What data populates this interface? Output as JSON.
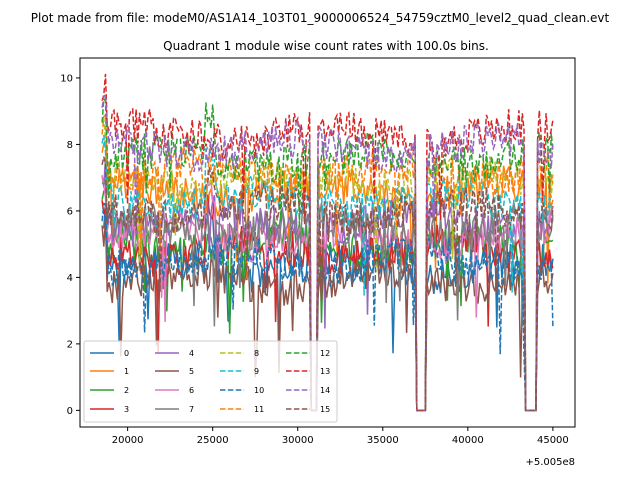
{
  "chart_data": {
    "type": "line",
    "suptitle": "Plot made from file: modeM0/AS1A14_103T01_9000006524_54759cztM0_level2_quad_clean.evt",
    "title": "Quadrant 1 module wise count rates with 100.0s bins.",
    "xlabel": "",
    "ylabel": "",
    "x_offset_label": "+5.005e8",
    "xlim": [
      17200,
      46300
    ],
    "ylim": [
      -0.5,
      10.6
    ],
    "x_ticks": [
      20000,
      25000,
      30000,
      35000,
      40000,
      45000
    ],
    "x_tick_labels": [
      "20000",
      "25000",
      "30000",
      "35000",
      "40000",
      "45000"
    ],
    "y_ticks": [
      0,
      2,
      4,
      6,
      8,
      10
    ],
    "y_tick_labels": [
      "0",
      "2",
      "4",
      "6",
      "8",
      "10"
    ],
    "x_range": [
      18500,
      45000
    ],
    "legend_position": "lower-left",
    "gaps": [
      {
        "from": 30800,
        "to": 31100
      },
      {
        "from": 37000,
        "to": 37500
      },
      {
        "from": 43400,
        "to": 44000
      }
    ],
    "series": [
      {
        "name": "0",
        "mean": 4.3,
        "style": "solid",
        "color": "#1f77b4"
      },
      {
        "name": "1",
        "mean": 6.6,
        "style": "solid",
        "color": "#ff7f0e"
      },
      {
        "name": "2",
        "mean": 5.0,
        "style": "solid",
        "color": "#2ca02c"
      },
      {
        "name": "3",
        "mean": 4.8,
        "style": "solid",
        "color": "#d62728"
      },
      {
        "name": "4",
        "mean": 5.7,
        "style": "solid",
        "color": "#9467bd"
      },
      {
        "name": "5",
        "mean": 3.9,
        "style": "solid",
        "color": "#8c564b"
      },
      {
        "name": "6",
        "mean": 5.2,
        "style": "solid",
        "color": "#e377c2"
      },
      {
        "name": "7",
        "mean": 5.5,
        "style": "solid",
        "color": "#7f7f7f"
      },
      {
        "name": "8",
        "mean": 6.9,
        "style": "dashed",
        "color": "#bcbd22"
      },
      {
        "name": "9",
        "mean": 6.3,
        "style": "dashed",
        "color": "#17becf"
      },
      {
        "name": "10",
        "mean": 4.5,
        "style": "dashed",
        "color": "#1f77b4"
      },
      {
        "name": "11",
        "mean": 7.2,
        "style": "dashed",
        "color": "#ff7f0e"
      },
      {
        "name": "12",
        "mean": 7.6,
        "style": "dashed",
        "color": "#2ca02c"
      },
      {
        "name": "13",
        "mean": 8.3,
        "style": "dashed",
        "color": "#d62728"
      },
      {
        "name": "14",
        "mean": 7.9,
        "style": "dashed",
        "color": "#9467bd"
      },
      {
        "name": "15",
        "mean": 6.0,
        "style": "dashed",
        "color": "#8c564b"
      }
    ]
  }
}
